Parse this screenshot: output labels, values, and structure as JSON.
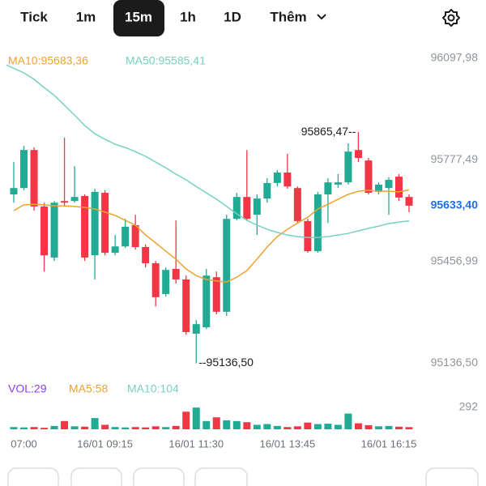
{
  "tabs": [
    "Tick",
    "1m",
    "15m",
    "1h",
    "1D",
    "Thêm"
  ],
  "selected_tab": 2,
  "chart_data": {
    "type": "candlestick",
    "categories": [
      null,
      "07:00",
      null,
      null,
      null,
      null,
      null,
      null,
      null,
      "16/01 09:15",
      null,
      null,
      null,
      null,
      null,
      null,
      null,
      null,
      "16/01 11:30",
      null,
      null,
      null,
      null,
      null,
      null,
      null,
      null,
      "16/01 13:45",
      null,
      null,
      null,
      null,
      null,
      null,
      null,
      null,
      null,
      "16/01 16:15",
      null,
      null
    ],
    "open": [
      95669,
      95689,
      95809,
      95631,
      95470,
      95648,
      95648,
      95664,
      95477,
      95674,
      95485,
      95505,
      95572,
      95503,
      95452,
      95355,
      95434,
      95401,
      95230,
      95250,
      95408,
      95299,
      95592,
      95661,
      95605,
      95656,
      95705,
      95738,
      95689,
      95585,
      95490,
      95669,
      95700,
      95707,
      95809,
      95776,
      95677,
      95689,
      95725,
      95661
    ],
    "high": [
      95771,
      95822,
      95817,
      95643,
      95648,
      95848,
      95758,
      95669,
      95687,
      95682,
      95541,
      95592,
      95605,
      95511,
      95459,
      95439,
      95587,
      95413,
      95273,
      95434,
      95426,
      95605,
      95674,
      95809,
      95669,
      95720,
      95746,
      95797,
      95694,
      95592,
      95677,
      95720,
      95733,
      95830,
      95865.47,
      95784,
      95707,
      95723,
      95733,
      95669
    ],
    "low": [
      95643,
      95682,
      95618,
      95426,
      95459,
      95631,
      95643,
      95459,
      95401,
      95477,
      95477,
      95500,
      95495,
      95439,
      95316,
      95347,
      95388,
      95227,
      95136.5,
      95245,
      95291,
      95286,
      95587,
      95587,
      95541,
      95643,
      95694,
      95687,
      95577,
      95485,
      95485,
      95579,
      95689,
      95700,
      95771,
      95669,
      95669,
      95605,
      95648,
      95613
    ],
    "close": [
      95689,
      95809,
      95631,
      95477,
      95643,
      95643,
      95661,
      95470,
      95677,
      95485,
      95505,
      95567,
      95503,
      95452,
      95345,
      95431,
      95401,
      95235,
      95260,
      95413,
      95299,
      95592,
      95661,
      95592,
      95656,
      95705,
      95738,
      95694,
      95585,
      95490,
      95669,
      95707,
      95707,
      95804,
      95784,
      95674,
      95700,
      95715,
      95659,
      95633.4
    ],
    "up_color": "#22ab94",
    "down_color": "#f23645",
    "series": [
      {
        "name": "MA10:95683,36",
        "color": "#f0a22e",
        "values": [
          95618,
          95636,
          95638,
          95636,
          95633,
          95633,
          95631,
          95628,
          95623,
          95613,
          95603,
          95587,
          95572,
          95541,
          95516,
          95490,
          95465,
          95434,
          95413,
          95401,
          95396,
          95393,
          95408,
          95429,
          95465,
          95503,
          95536,
          95559,
          95579,
          95597,
          95623,
          95638,
          95654,
          95669,
          95679,
          95682,
          95679,
          95679,
          95677,
          95683.36
        ]
      },
      {
        "name": "MA50:95585,41",
        "color": "#76d1c1",
        "values": [
          96077,
          96052,
          96032,
          96006,
          95981,
          95950,
          95919,
          95886,
          95860,
          95843,
          95827,
          95817,
          95804,
          95789,
          95771,
          95753,
          95733,
          95715,
          95694,
          95674,
          95654,
          95631,
          95608,
          95587,
          95572,
          95559,
          95549,
          95541,
          95536,
          95533,
          95533,
          95536,
          95541,
          95546,
          95554,
          95562,
          95569,
          95577,
          95582,
          95585.41
        ]
      }
    ],
    "ylim": [
      95110,
      96130
    ],
    "yticks": [
      {
        "value": 96097.98,
        "label": "96097,98"
      },
      {
        "value": 95777.49,
        "label": "95777,49"
      },
      {
        "value": 95456.99,
        "label": "95456,99"
      },
      {
        "value": 95136.5,
        "label": "95136,50"
      }
    ],
    "last_price": {
      "value": 95633.4,
      "label": "95633,40",
      "color": "#1e6fe6"
    },
    "max_label": "95865,47--",
    "min_label": "--95136,50",
    "volume": {
      "legend": [
        {
          "text": "VOL:29",
          "color": "#8a3ffc"
        },
        {
          "text": "MA5:58",
          "color": "#f0a22e"
        },
        {
          "text": "MA10:104",
          "color": "#76d1c1"
        }
      ],
      "values": [
        30,
        25,
        30,
        20,
        45,
        110,
        40,
        35,
        150,
        60,
        30,
        25,
        30,
        25,
        40,
        30,
        45,
        235,
        290,
        110,
        160,
        120,
        110,
        95,
        60,
        70,
        45,
        30,
        40,
        90,
        70,
        75,
        60,
        210,
        80,
        55,
        40,
        45,
        35,
        29
      ],
      "ylim": [
        0,
        292
      ],
      "yticks": [
        292
      ]
    }
  }
}
